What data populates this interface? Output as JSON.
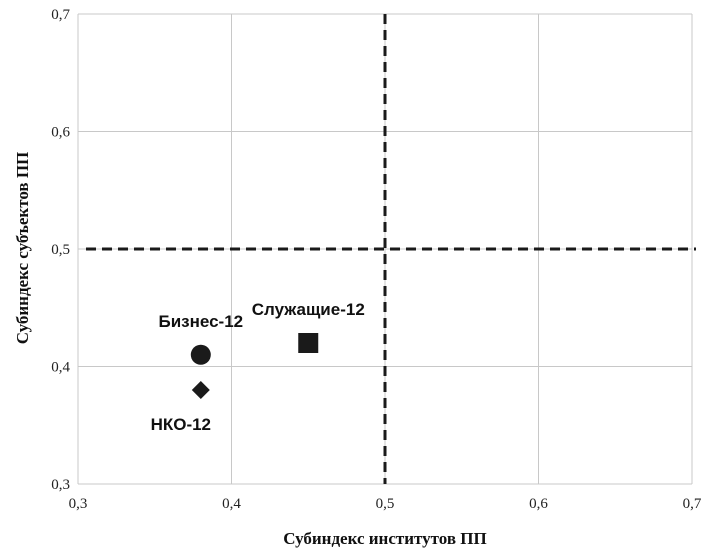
{
  "chart_data": {
    "type": "scatter",
    "xlabel": "Субиндекс институтов ПП",
    "ylabel": "Субиндекс субъектов ПП",
    "xlim": [
      0.3,
      0.7
    ],
    "ylim": [
      0.3,
      0.7
    ],
    "x_ticks": [
      "0,3",
      "0,4",
      "0,5",
      "0,6",
      "0,7"
    ],
    "y_ticks": [
      "0,3",
      "0,4",
      "0,5",
      "0,6",
      "0,7"
    ],
    "grid": true,
    "reference_lines": {
      "x": 0.5,
      "y": 0.5,
      "style": "dashed"
    },
    "points": [
      {
        "label": "Бизнес-12",
        "x": 0.38,
        "y": 0.41,
        "marker": "circle",
        "label_pos": "above"
      },
      {
        "label": "НКО-12",
        "x": 0.38,
        "y": 0.38,
        "marker": "diamond",
        "label_pos": "below-left"
      },
      {
        "label": "Служащие-12",
        "x": 0.45,
        "y": 0.42,
        "marker": "square",
        "label_pos": "above"
      }
    ],
    "colors": {
      "marker": "#1a1a1a",
      "grid": "#c8c8c8",
      "reference": "#1a1a1a"
    }
  }
}
